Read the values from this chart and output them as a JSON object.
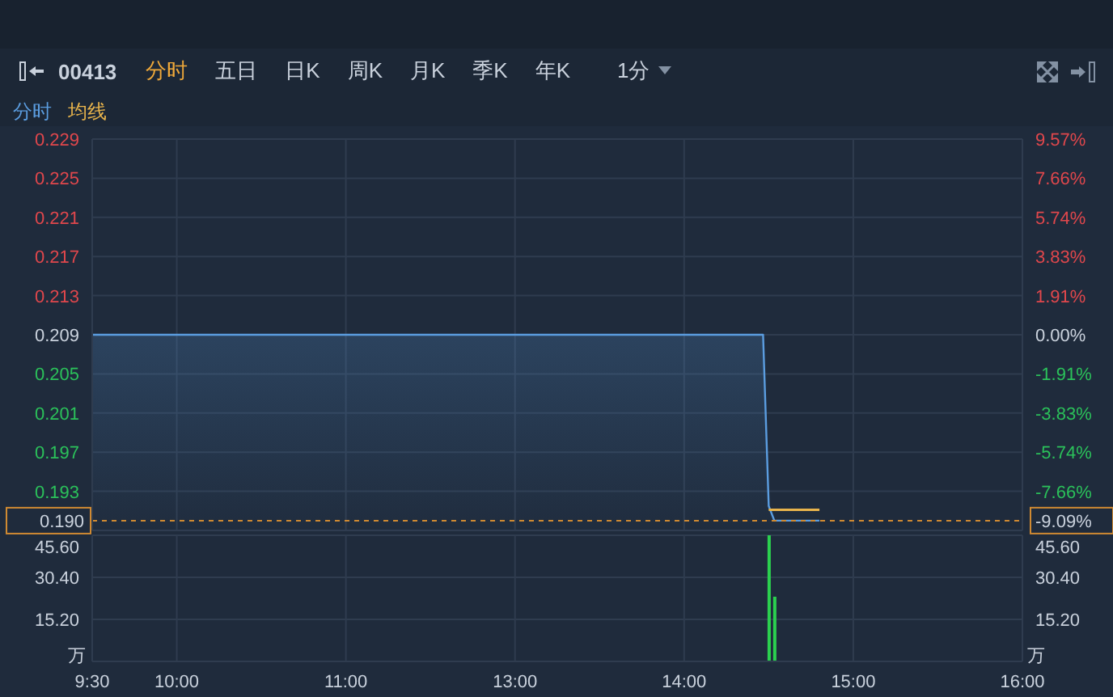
{
  "chart_data": [
    {
      "type": "area",
      "legend": "top left",
      "grid": true,
      "tick_labels": "y",
      "annotations": [
        "00413",
        "分时",
        "五日",
        "日K",
        "周K",
        "月K",
        "季K",
        "年K",
        "1分"
      ],
      "categories": [
        null,
        null,
        null,
        null,
        null,
        null,
        null,
        null,
        null,
        null,
        null,
        null,
        null,
        null,
        null,
        null,
        null,
        null,
        null,
        null,
        null,
        null,
        null,
        null,
        null,
        null,
        null,
        null,
        null,
        null,
        null,
        null,
        null,
        null,
        null,
        null,
        null,
        null,
        null,
        null,
        null,
        null,
        null,
        null,
        null,
        null,
        null,
        null,
        null,
        null,
        null,
        null,
        null,
        null,
        null,
        null,
        null,
        null,
        null,
        null,
        null,
        null,
        null,
        null,
        null,
        null,
        null,
        null,
        null,
        null,
        null,
        null,
        null,
        null,
        null,
        null,
        null,
        null,
        null,
        null,
        null,
        null,
        null,
        null,
        null,
        null,
        null,
        null,
        null,
        null,
        null,
        null,
        null,
        null,
        null,
        null,
        null,
        null,
        null,
        null,
        null,
        null,
        null,
        null,
        null,
        null,
        null,
        null,
        null,
        null,
        null,
        null,
        null,
        null,
        null,
        null,
        null,
        null,
        null,
        null,
        null,
        null,
        null,
        null,
        null,
        null,
        null,
        null,
        null,
        null,
        null,
        null,
        null,
        null,
        null,
        null,
        null,
        null,
        null,
        null,
        null,
        null,
        null,
        null,
        null,
        null,
        null,
        null,
        null,
        null,
        null,
        null,
        null,
        null,
        null,
        null,
        null,
        null,
        null,
        null,
        null,
        null,
        null,
        null,
        null,
        null
      ],
      "ylim": [
        0.189,
        0.229
      ],
      "yticks": [
        0.229,
        0.225,
        0.221,
        0.217,
        0.213,
        0.209,
        0.205,
        0.201,
        0.197,
        0.193
      ],
      "y2lim": [
        -9.57,
        9.57
      ],
      "y2ticks": [
        {
          "value": 9.57,
          "label": "9.57%"
        },
        {
          "value": 7.66,
          "label": "7.66%"
        },
        {
          "value": 5.74,
          "label": "5.74%"
        },
        {
          "value": 3.83,
          "label": "3.83%"
        },
        {
          "value": 1.91,
          "label": "1.91%"
        },
        {
          "value": 0,
          "label": "0.00%"
        },
        {
          "value": -1.91,
          "label": "-1.91%"
        },
        {
          "value": -3.83,
          "label": "-3.83%"
        },
        {
          "value": -5.74,
          "label": "-5.74%"
        },
        {
          "value": -7.66,
          "label": "-7.66%"
        },
        {
          "value": -9.09,
          "label": "-9.09%"
        }
      ],
      "ref_lines": [
        {
          "axis": "y",
          "value": 0.19,
          "label": "0.190",
          "color": "#d08a32",
          "line_style": "dashed"
        }
      ],
      "series": [
        {
          "name": "分时",
          "type": "area",
          "color": "#5b9de0",
          "values": [
            0.209,
            0.209,
            0.209,
            0.209,
            0.209,
            0.209,
            0.209,
            0.209,
            0.209,
            0.209,
            0.209,
            0.209,
            0.209,
            0.209,
            0.209,
            0.209,
            0.209,
            0.209,
            0.209,
            0.209,
            0.209,
            0.209,
            0.209,
            0.209,
            0.209,
            0.209,
            0.209,
            0.209,
            0.209,
            0.209,
            0.209,
            0.209,
            0.209,
            0.209,
            0.209,
            0.209,
            0.209,
            0.209,
            0.209,
            0.209,
            0.209,
            0.209,
            0.209,
            0.209,
            0.209,
            0.209,
            0.209,
            0.209,
            0.209,
            0.209,
            0.209,
            0.209,
            0.209,
            0.209,
            0.209,
            0.209,
            0.209,
            0.209,
            0.209,
            0.209,
            0.209,
            0.209,
            0.209,
            0.209,
            0.209,
            0.209,
            0.209,
            0.209,
            0.209,
            0.209,
            0.209,
            0.209,
            0.209,
            0.209,
            0.209,
            0.209,
            0.209,
            0.209,
            0.209,
            0.209,
            0.209,
            0.209,
            0.209,
            0.209,
            0.209,
            0.209,
            0.209,
            0.209,
            0.209,
            0.209,
            0.209,
            0.209,
            0.209,
            0.209,
            0.209,
            0.209,
            0.209,
            0.209,
            0.209,
            0.209,
            0.209,
            0.209,
            0.209,
            0.209,
            0.209,
            0.209,
            0.209,
            0.209,
            0.209,
            0.209,
            0.209,
            0.209,
            0.209,
            0.209,
            0.209,
            0.209,
            0.209,
            0.209,
            0.209,
            0.209,
            0.1915,
            0.19,
            0.19,
            0.19,
            0.19,
            0.19,
            0.19,
            0.19,
            0.19,
            0.19,
            null,
            null,
            null,
            null,
            null,
            null,
            null,
            null,
            null,
            null,
            null,
            null,
            null,
            null,
            null,
            null,
            null,
            null,
            null,
            null,
            null,
            null,
            null,
            null,
            null,
            null,
            null,
            null,
            null,
            null,
            null,
            null,
            null,
            null,
            null,
            null
          ]
        },
        {
          "name": "均线",
          "type": "line",
          "color": "#e8b44c",
          "values": [
            null,
            null,
            null,
            null,
            null,
            null,
            null,
            null,
            null,
            null,
            null,
            null,
            null,
            null,
            null,
            null,
            null,
            null,
            null,
            null,
            null,
            null,
            null,
            null,
            null,
            null,
            null,
            null,
            null,
            null,
            null,
            null,
            null,
            null,
            null,
            null,
            null,
            null,
            null,
            null,
            null,
            null,
            null,
            null,
            null,
            null,
            null,
            null,
            null,
            null,
            null,
            null,
            null,
            null,
            null,
            null,
            null,
            null,
            null,
            null,
            null,
            null,
            null,
            null,
            null,
            null,
            null,
            null,
            null,
            null,
            null,
            null,
            null,
            null,
            null,
            null,
            null,
            null,
            null,
            null,
            null,
            null,
            null,
            null,
            null,
            null,
            null,
            null,
            null,
            null,
            null,
            null,
            null,
            null,
            null,
            null,
            null,
            null,
            null,
            null,
            null,
            null,
            null,
            null,
            null,
            null,
            null,
            null,
            null,
            null,
            null,
            null,
            null,
            null,
            null,
            null,
            null,
            null,
            null,
            null,
            0.1911,
            0.1911,
            0.1911,
            0.1911,
            0.1911,
            0.1911,
            0.1911,
            0.1911,
            0.1911,
            0.1911,
            null,
            null,
            null,
            null,
            null,
            null,
            null,
            null,
            null,
            null,
            null,
            null,
            null,
            null,
            null,
            null,
            null,
            null,
            null,
            null,
            null,
            null,
            null,
            null,
            null,
            null,
            null,
            null,
            null,
            null,
            null,
            null,
            null,
            null,
            null,
            null
          ]
        }
      ]
    },
    {
      "type": "bar",
      "grid": true,
      "ylabel": "万",
      "y2label": "万",
      "categories": [
        "9:30",
        null,
        null,
        null,
        null,
        null,
        null,
        null,
        null,
        null,
        null,
        null,
        null,
        null,
        null,
        "10:00",
        null,
        null,
        null,
        null,
        null,
        null,
        null,
        null,
        null,
        null,
        null,
        null,
        null,
        null,
        null,
        null,
        null,
        null,
        null,
        null,
        null,
        null,
        null,
        null,
        null,
        null,
        null,
        null,
        null,
        "11:00",
        null,
        null,
        null,
        null,
        null,
        null,
        null,
        null,
        null,
        null,
        null,
        null,
        null,
        null,
        null,
        null,
        null,
        null,
        null,
        null,
        null,
        null,
        null,
        null,
        null,
        null,
        null,
        null,
        null,
        "13:00",
        null,
        null,
        null,
        null,
        null,
        null,
        null,
        null,
        null,
        null,
        null,
        null,
        null,
        null,
        null,
        null,
        null,
        null,
        null,
        null,
        null,
        null,
        null,
        null,
        null,
        null,
        null,
        null,
        null,
        "14:00",
        null,
        null,
        null,
        null,
        null,
        null,
        null,
        null,
        null,
        null,
        null,
        null,
        null,
        null,
        null,
        null,
        null,
        null,
        null,
        null,
        null,
        null,
        null,
        null,
        null,
        null,
        null,
        null,
        null,
        "15:00",
        null,
        null,
        null,
        null,
        null,
        null,
        null,
        null,
        null,
        null,
        null,
        null,
        null,
        null,
        null,
        null,
        null,
        null,
        null,
        null,
        null,
        null,
        null,
        null,
        null,
        null,
        null,
        null,
        null,
        "16:00"
      ],
      "ylim": [
        0,
        45.6
      ],
      "yticks": [
        {
          "value": 15.2,
          "label": "15.20"
        },
        {
          "value": 30.4,
          "label": "30.40"
        },
        {
          "value": 45.6,
          "label": "45.60"
        }
      ],
      "y2lim": [
        0,
        45.6
      ],
      "y2ticks": [
        {
          "value": 15.2,
          "label": "15.20"
        },
        {
          "value": 30.4,
          "label": "30.40"
        },
        {
          "value": 45.6,
          "label": "45.60"
        }
      ],
      "series": [
        {
          "color": "#2bd14f",
          "values": [
            null,
            null,
            null,
            null,
            null,
            null,
            null,
            null,
            null,
            null,
            null,
            null,
            null,
            null,
            null,
            null,
            null,
            null,
            null,
            null,
            null,
            null,
            null,
            null,
            null,
            null,
            null,
            null,
            null,
            null,
            null,
            null,
            null,
            null,
            null,
            null,
            null,
            null,
            null,
            null,
            null,
            null,
            null,
            null,
            null,
            null,
            null,
            null,
            null,
            null,
            null,
            null,
            null,
            null,
            null,
            null,
            null,
            null,
            null,
            null,
            null,
            null,
            null,
            null,
            null,
            null,
            null,
            null,
            null,
            null,
            null,
            null,
            null,
            null,
            null,
            null,
            null,
            null,
            null,
            null,
            null,
            null,
            null,
            null,
            null,
            null,
            null,
            null,
            null,
            null,
            null,
            null,
            null,
            null,
            null,
            null,
            null,
            null,
            null,
            null,
            null,
            null,
            null,
            null,
            null,
            null,
            null,
            null,
            null,
            null,
            null,
            null,
            null,
            null,
            null,
            null,
            null,
            null,
            null,
            null,
            45.6,
            23.4,
            null,
            null,
            null,
            null,
            null,
            null,
            null,
            null,
            null,
            null,
            null,
            null,
            null,
            null,
            null,
            null,
            null,
            null,
            null,
            null,
            null,
            null,
            null,
            null,
            null,
            null,
            null,
            null,
            null,
            null,
            null,
            null,
            null,
            null,
            null,
            null,
            null,
            null,
            null,
            null,
            null,
            null,
            null,
            null
          ]
        }
      ]
    }
  ]
}
